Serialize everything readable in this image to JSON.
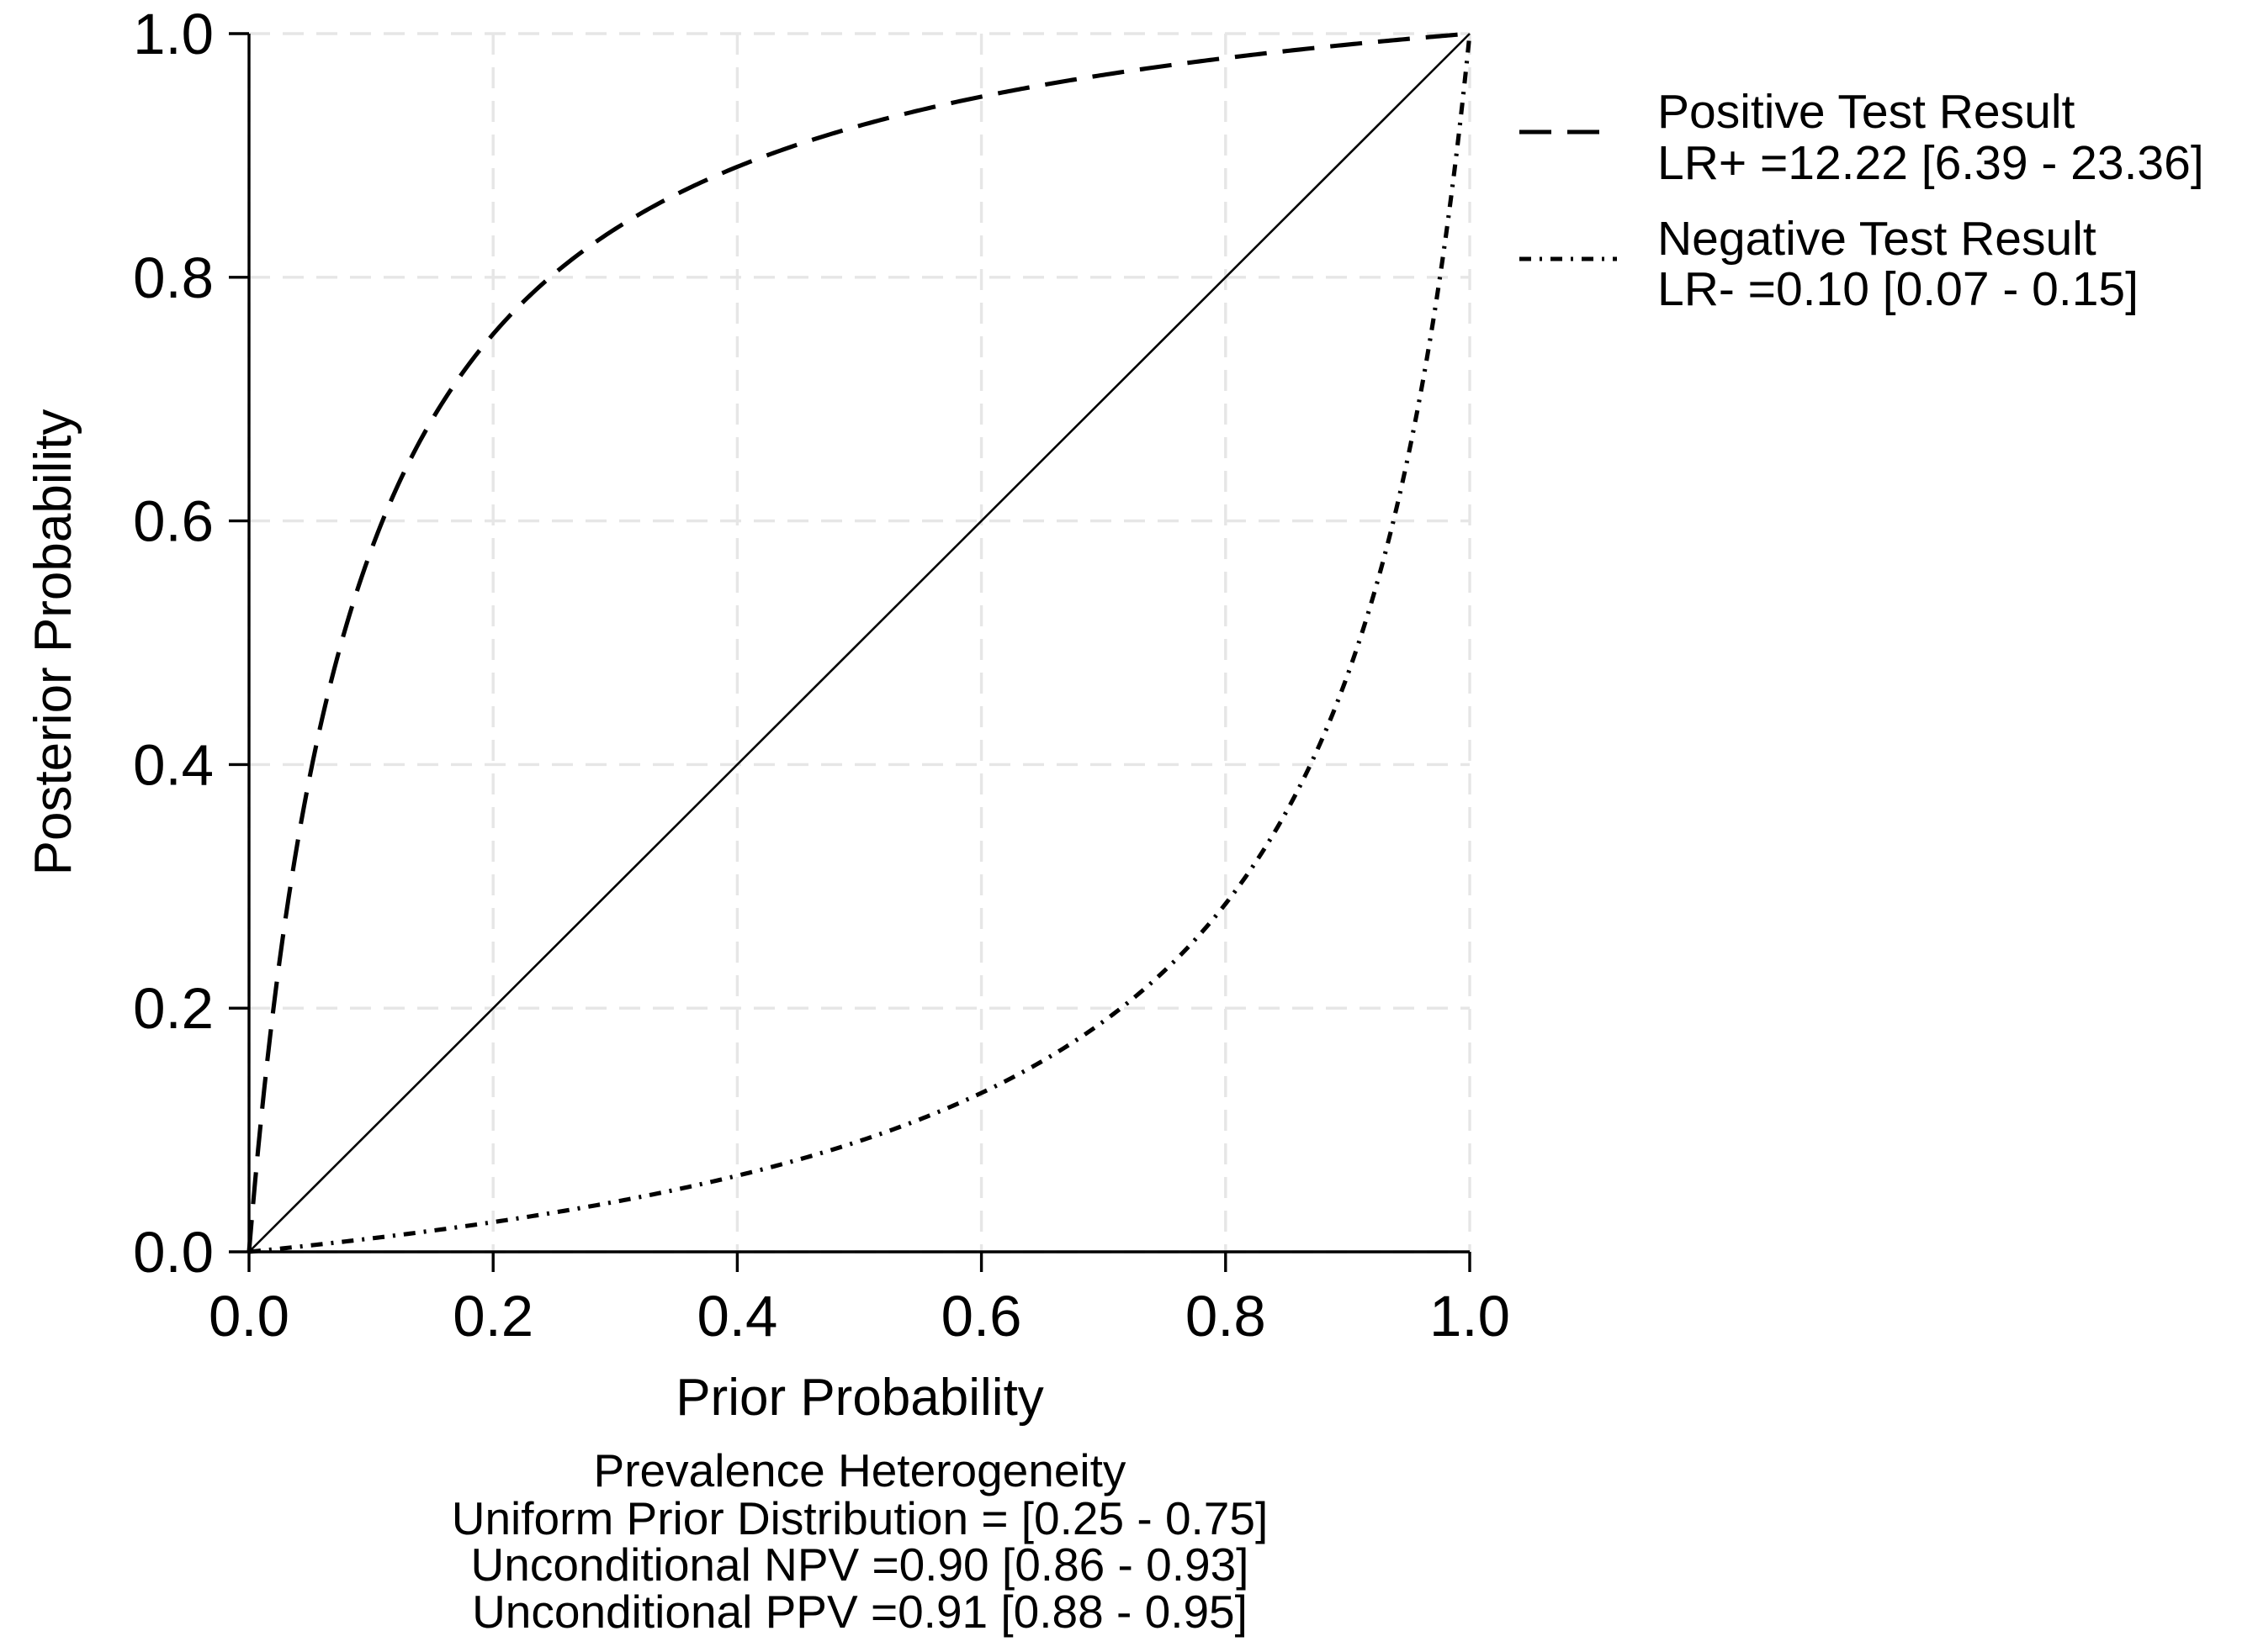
{
  "chart_data": {
    "type": "line",
    "xlabel": "Prior Probability",
    "ylabel": "Posterior Probability",
    "xlim": [
      0,
      1
    ],
    "ylim": [
      0,
      1
    ],
    "ticks": {
      "x": [
        "0.0",
        "0.2",
        "0.4",
        "0.6",
        "0.8",
        "1.0"
      ],
      "y": [
        "0.0",
        "0.2",
        "0.4",
        "0.6",
        "0.8",
        "1.0"
      ]
    },
    "grid": true,
    "legend_position": "right",
    "series": [
      {
        "name": "Positive Test Result",
        "legend_lines": [
          "Positive Test Result",
          "LR+ =12.22 [6.39 - 23.36]"
        ],
        "line_style": "dashed",
        "likelihood_ratio": 12.22,
        "x": [
          0,
          0.01,
          0.02,
          0.03,
          0.04,
          0.05,
          0.06,
          0.08,
          0.1,
          0.12,
          0.15,
          0.2,
          0.25,
          0.3,
          0.35,
          0.4,
          0.5,
          0.6,
          0.7,
          0.8,
          0.9,
          1.0
        ],
        "y": [
          0,
          0.11,
          0.2,
          0.27,
          0.34,
          0.39,
          0.44,
          0.52,
          0.58,
          0.62,
          0.68,
          0.75,
          0.8,
          0.84,
          0.87,
          0.89,
          0.92,
          0.95,
          0.97,
          0.98,
          0.99,
          1.0
        ]
      },
      {
        "name": "Negative Test Result",
        "legend_lines": [
          "Negative Test Result",
          "LR- =0.10 [0.07 - 0.15]"
        ],
        "line_style": "dash-dot",
        "likelihood_ratio": 0.1,
        "x": [
          0,
          0.1,
          0.2,
          0.3,
          0.4,
          0.5,
          0.6,
          0.7,
          0.8,
          0.85,
          0.9,
          0.93,
          0.95,
          0.97,
          0.98,
          0.99,
          1.0
        ],
        "y": [
          0,
          0.01,
          0.02,
          0.04,
          0.06,
          0.09,
          0.13,
          0.19,
          0.29,
          0.36,
          0.47,
          0.57,
          0.66,
          0.76,
          0.83,
          0.91,
          1.0
        ]
      },
      {
        "line_style": "solid",
        "x": [
          0,
          1
        ],
        "y": [
          0,
          1
        ]
      }
    ],
    "notes": [
      "Prevalence Heterogeneity",
      "Uniform Prior Distribution = [0.25 - 0.75]",
      "Unconditional NPV =0.90 [0.86 - 0.93]",
      "Unconditional PPV =0.91 [0.88 - 0.95]"
    ]
  }
}
